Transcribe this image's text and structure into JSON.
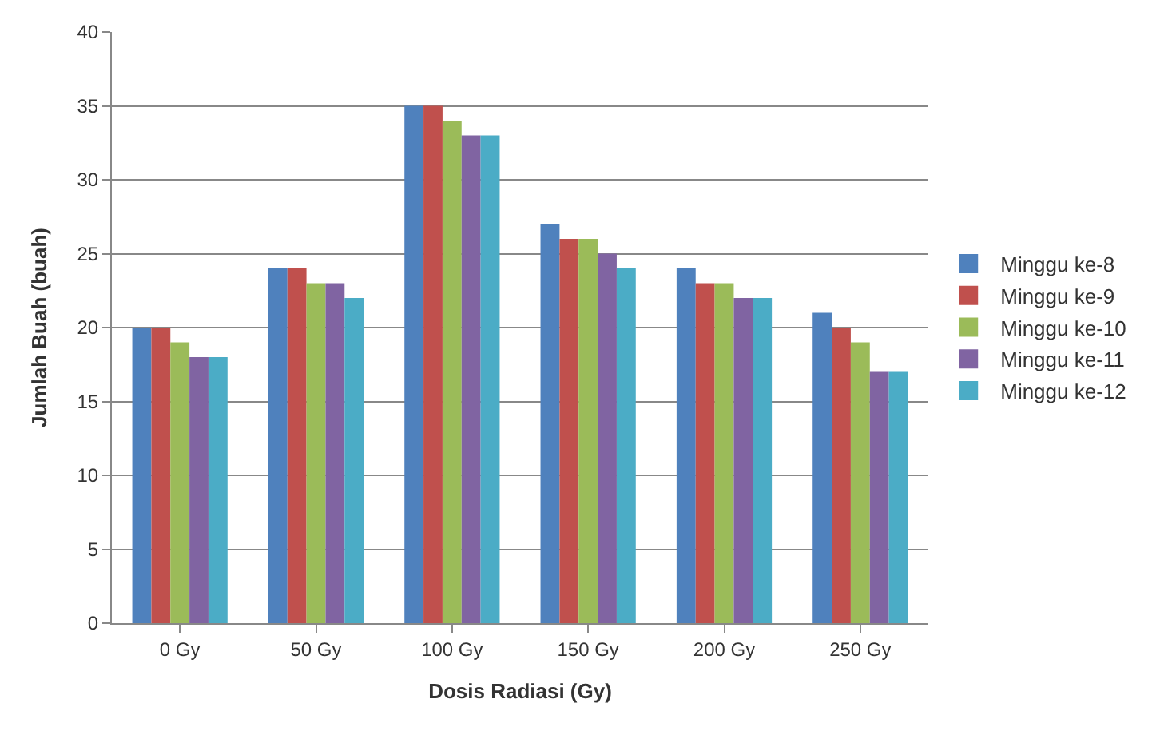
{
  "chart_data": {
    "type": "bar",
    "xlabel": "Dosis Radiasi (Gy)",
    "ylabel": "Jumlah Buah (buah)",
    "categories": [
      "0 Gy",
      "50 Gy",
      "100 Gy",
      "150 Gy",
      "200 Gy",
      "250 Gy"
    ],
    "series": [
      {
        "name": "Minggu ke-8",
        "color": "#4f81bd",
        "values": [
          20,
          24,
          35,
          27,
          24,
          21
        ]
      },
      {
        "name": "Minggu ke-9",
        "color": "#c0504d",
        "values": [
          20,
          24,
          35,
          26,
          23,
          20
        ]
      },
      {
        "name": "Minggu ke-10",
        "color": "#9bbb59",
        "values": [
          19,
          23,
          34,
          26,
          23,
          19
        ]
      },
      {
        "name": "Minggu ke-11",
        "color": "#8064a2",
        "values": [
          18,
          23,
          33,
          25,
          22,
          17
        ]
      },
      {
        "name": "Minggu ke-12",
        "color": "#4bacc6",
        "values": [
          18,
          22,
          33,
          24,
          22,
          17
        ]
      }
    ],
    "ylim": [
      0,
      40
    ],
    "yticks": [
      0,
      5,
      10,
      15,
      20,
      25,
      30,
      35,
      40
    ],
    "grid": "y",
    "legend": "right"
  }
}
